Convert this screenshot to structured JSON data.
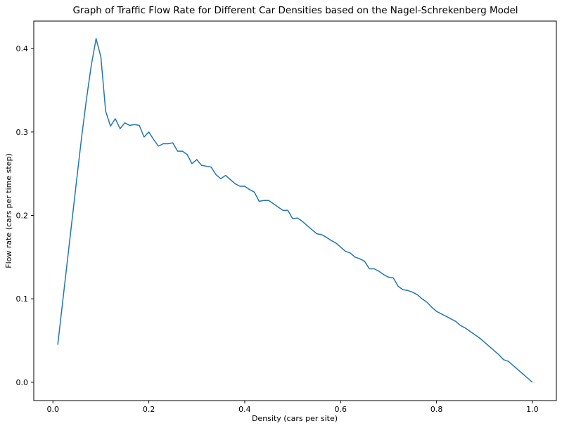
{
  "chart_data": {
    "type": "line",
    "title": "Graph of Traffic Flow Rate for Different Car Densities based on the Nagel-Schrekenberg Model",
    "xlabel": "Density (cars per site)",
    "ylabel": "Flow rate (cars per time step)",
    "xlim": [
      -0.04,
      1.05
    ],
    "ylim": [
      -0.022,
      0.433
    ],
    "xticks": [
      0.0,
      0.2,
      0.4,
      0.6,
      0.8,
      1.0
    ],
    "xtick_labels": [
      "0.0",
      "0.2",
      "0.4",
      "0.6",
      "0.8",
      "1.0"
    ],
    "yticks": [
      0.0,
      0.1,
      0.2,
      0.3,
      0.4
    ],
    "ytick_labels": [
      "0.0",
      "0.1",
      "0.2",
      "0.3",
      "0.4"
    ],
    "grid": false,
    "legend": "none",
    "series": [
      {
        "color": "#1f77b4",
        "x": [
          0.01,
          0.02,
          0.03,
          0.04,
          0.05,
          0.06,
          0.07,
          0.08,
          0.09,
          0.1,
          0.11,
          0.12,
          0.13,
          0.14,
          0.15,
          0.16,
          0.17,
          0.18,
          0.19,
          0.2,
          0.21,
          0.22,
          0.23,
          0.24,
          0.25,
          0.26,
          0.27,
          0.28,
          0.29,
          0.3,
          0.31,
          0.32,
          0.33,
          0.34,
          0.35,
          0.36,
          0.37,
          0.38,
          0.39,
          0.4,
          0.41,
          0.42,
          0.43,
          0.44,
          0.45,
          0.46,
          0.47,
          0.48,
          0.49,
          0.5,
          0.51,
          0.52,
          0.53,
          0.54,
          0.55,
          0.56,
          0.57,
          0.58,
          0.59,
          0.6,
          0.61,
          0.62,
          0.63,
          0.64,
          0.65,
          0.66,
          0.67,
          0.68,
          0.69,
          0.7,
          0.71,
          0.72,
          0.73,
          0.74,
          0.75,
          0.76,
          0.77,
          0.78,
          0.79,
          0.8,
          0.81,
          0.82,
          0.83,
          0.84,
          0.85,
          0.86,
          0.87,
          0.88,
          0.89,
          0.9,
          0.91,
          0.92,
          0.93,
          0.94,
          0.95,
          0.96,
          0.97,
          0.98,
          0.99,
          1.0
        ],
        "y": [
          0.045,
          0.095,
          0.145,
          0.195,
          0.245,
          0.295,
          0.34,
          0.38,
          0.412,
          0.39,
          0.325,
          0.307,
          0.316,
          0.304,
          0.311,
          0.308,
          0.309,
          0.308,
          0.294,
          0.3,
          0.291,
          0.283,
          0.286,
          0.286,
          0.287,
          0.277,
          0.277,
          0.273,
          0.262,
          0.267,
          0.26,
          0.259,
          0.258,
          0.249,
          0.244,
          0.248,
          0.243,
          0.238,
          0.235,
          0.235,
          0.231,
          0.228,
          0.217,
          0.218,
          0.218,
          0.214,
          0.21,
          0.206,
          0.206,
          0.196,
          0.197,
          0.193,
          0.188,
          0.183,
          0.178,
          0.177,
          0.174,
          0.17,
          0.167,
          0.162,
          0.157,
          0.155,
          0.15,
          0.148,
          0.145,
          0.136,
          0.136,
          0.133,
          0.129,
          0.126,
          0.125,
          0.115,
          0.111,
          0.11,
          0.108,
          0.105,
          0.1,
          0.096,
          0.09,
          0.085,
          0.082,
          0.079,
          0.076,
          0.073,
          0.068,
          0.065,
          0.061,
          0.057,
          0.053,
          0.048,
          0.043,
          0.038,
          0.033,
          0.027,
          0.025,
          0.02,
          0.015,
          0.01,
          0.005,
          0.0
        ]
      }
    ]
  }
}
